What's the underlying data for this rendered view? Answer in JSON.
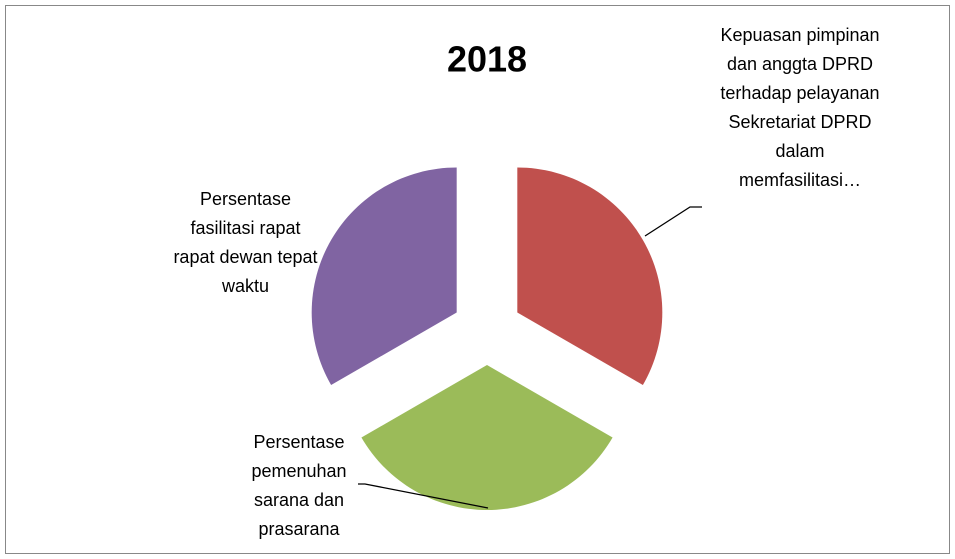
{
  "chart_data": {
    "type": "pie",
    "title": "2018",
    "categories": [
      "Kepuasan pimpinan dan anggta DPRD terhadap pelayanan Sekretariat DPRD dalam memfasilitasi…",
      "Persentase pemenuhan sarana dan prasarana",
      "Persentase fasilitasi rapat rapat dewan tepat waktu"
    ],
    "values": [
      33.3,
      33.3,
      33.3
    ],
    "colors": [
      "#c0504d",
      "#9bbb59",
      "#8064a2"
    ],
    "exploded": true
  }
}
